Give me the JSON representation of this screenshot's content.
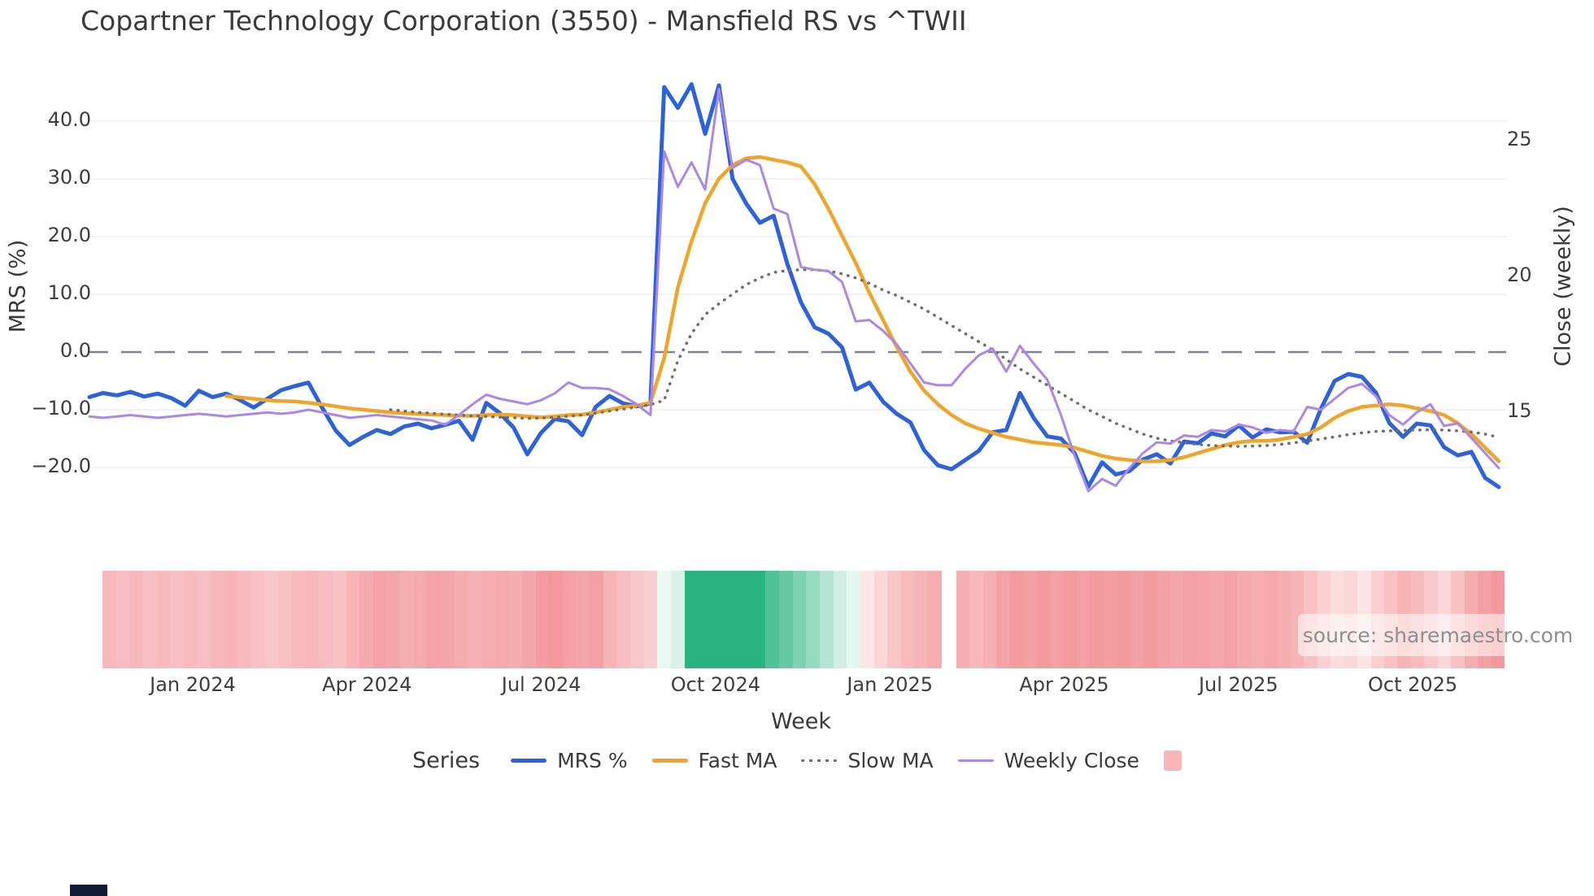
{
  "title": "Copartner Technology Corporation (3550) - Mansfield RS vs ^TWII",
  "source": "source: sharemaestro.com",
  "left_axis": {
    "label": "MRS (%)",
    "tick_labels": [
      "40.0",
      "30.0",
      "20.0",
      "10.0",
      "0.0",
      "−10.0",
      "−20.0"
    ],
    "tick_values": [
      40,
      30,
      20,
      10,
      0,
      -10,
      -20
    ]
  },
  "right_axis": {
    "label": "Close (weekly)",
    "tick_labels": [
      "25",
      "20",
      "15"
    ],
    "tick_values": [
      25,
      20,
      15
    ]
  },
  "x_axis": {
    "label": "Week",
    "tick_labels": [
      "Jan 2024",
      "Apr 2024",
      "Jul 2024",
      "Oct 2024",
      "Jan 2025",
      "Apr 2025",
      "Jul 2025",
      "Oct 2025"
    ]
  },
  "legend": {
    "title": "Series",
    "items": [
      {
        "label": "MRS %",
        "swatch": "line",
        "color": "#2e62d9",
        "thickness": 5
      },
      {
        "label": "Fast MA",
        "swatch": "line",
        "color": "#efa42b",
        "thickness": 4.5
      },
      {
        "label": "Slow MA",
        "swatch": "dotted",
        "color": "#6e6e6e",
        "thickness": 3.5
      },
      {
        "label": "Weekly Close",
        "swatch": "line",
        "color": "#ab87e6",
        "thickness": 3
      },
      {
        "label": "",
        "swatch": "square",
        "color": "#f7b5b8",
        "thickness": 0
      }
    ]
  },
  "colors": {
    "mrs": "#2e62d9",
    "fast_ma": "#efa42b",
    "slow_ma": "#6e6e6e",
    "weekly_close": "#ab87e6",
    "grid": "#ebedf2",
    "zero_line": "#82828c",
    "heat_red_full": "#ef767c",
    "heat_green_full": "#2ab381"
  },
  "chart_data": {
    "type": "line",
    "x_unit": "week",
    "x_weeks": 104,
    "x_tick_labels": [
      "Jan 2024",
      "Apr 2024",
      "Jul 2024",
      "Oct 2024",
      "Jan 2025",
      "Apr 2025",
      "Jul 2025",
      "Oct 2025"
    ],
    "left_axis": {
      "label": "MRS (%)",
      "ticks": [
        40,
        30,
        20,
        10,
        0,
        -10,
        -20
      ],
      "range": [
        -27,
        49
      ]
    },
    "right_axis": {
      "label": "Close (weekly)",
      "ticks": [
        25,
        20,
        15
      ],
      "range": [
        11.1,
        28.9
      ]
    },
    "zero_dashed_line_left_value": 0,
    "grid": "horizontal-only",
    "legend_position": "bottom",
    "series": [
      {
        "name": "MRS %",
        "axis": "left",
        "color": "#2e62d9",
        "style": "solid",
        "width": 5,
        "values": [
          -7.8,
          -7.1,
          -7.5,
          -6.9,
          -7.7,
          -7.2,
          -8.0,
          -9.3,
          -6.7,
          -7.8,
          -7.2,
          -8.3,
          -9.6,
          -8.1,
          -6.6,
          -5.9,
          -5.3,
          -9.6,
          -13.6,
          -16.1,
          -14.7,
          -13.5,
          -14.2,
          -12.9,
          -12.4,
          -13.2,
          -12.6,
          -11.9,
          -15.2,
          -8.8,
          -10.6,
          -13.1,
          -17.7,
          -14.0,
          -11.6,
          -12.0,
          -14.4,
          -9.5,
          -7.6,
          -8.9,
          -9.4,
          -8.9,
          45.9,
          42.3,
          46.4,
          37.8,
          46.2,
          30.0,
          25.7,
          22.4,
          23.6,
          15.3,
          8.6,
          4.3,
          3.2,
          0.8,
          -6.5,
          -5.3,
          -8.6,
          -10.7,
          -12.2,
          -17.0,
          -19.6,
          -20.3,
          -18.7,
          -17.1,
          -13.9,
          -13.5,
          -7.1,
          -11.4,
          -14.6,
          -15.0,
          -17.5,
          -23.3,
          -19.1,
          -21.2,
          -20.6,
          -18.6,
          -17.7,
          -19.3,
          -15.5,
          -15.8,
          -14.1,
          -14.6,
          -12.7,
          -14.8,
          -13.4,
          -13.9,
          -13.8,
          -15.7,
          -9.8,
          -5.0,
          -3.8,
          -4.3,
          -7.0,
          -12.3,
          -14.7,
          -12.4,
          -12.7,
          -16.5,
          -17.9,
          -17.3,
          -21.8,
          -23.4
        ]
      },
      {
        "name": "Fast MA",
        "axis": "right",
        "color": "#efa42b",
        "style": "solid",
        "width": 4.5,
        "values": [
          null,
          null,
          null,
          null,
          null,
          null,
          null,
          null,
          null,
          null,
          15.6,
          15.55,
          15.5,
          15.45,
          15.42,
          15.4,
          15.35,
          15.3,
          15.22,
          15.15,
          15.1,
          15.05,
          15.0,
          14.97,
          14.95,
          14.92,
          14.9,
          14.88,
          14.87,
          14.9,
          14.92,
          14.9,
          14.85,
          14.82,
          14.85,
          14.9,
          14.92,
          15.0,
          15.1,
          15.2,
          15.25,
          15.35,
          17.0,
          19.6,
          21.3,
          22.7,
          23.6,
          24.1,
          24.35,
          24.4,
          24.3,
          24.2,
          24.05,
          23.4,
          22.5,
          21.5,
          20.5,
          19.4,
          18.4,
          17.4,
          16.5,
          15.8,
          15.3,
          14.9,
          14.6,
          14.4,
          14.25,
          14.1,
          14.0,
          13.9,
          13.85,
          13.8,
          13.7,
          13.55,
          13.4,
          13.3,
          13.25,
          13.2,
          13.2,
          13.25,
          13.35,
          13.5,
          13.65,
          13.8,
          13.9,
          13.95,
          13.95,
          14.0,
          14.1,
          14.2,
          14.45,
          14.8,
          15.05,
          15.2,
          15.25,
          15.3,
          15.25,
          15.15,
          15.05,
          14.9,
          14.6,
          14.2,
          13.7,
          13.2
        ]
      },
      {
        "name": "Slow MA",
        "axis": "right",
        "color": "#6e6e6e",
        "style": "dotted",
        "width": 3.5,
        "values": [
          null,
          null,
          null,
          null,
          null,
          null,
          null,
          null,
          null,
          null,
          null,
          null,
          null,
          null,
          null,
          null,
          null,
          null,
          null,
          null,
          null,
          null,
          15.1,
          15.05,
          15.0,
          14.97,
          14.93,
          14.9,
          14.87,
          14.85,
          14.82,
          14.8,
          14.78,
          14.79,
          14.82,
          14.86,
          14.9,
          14.97,
          15.05,
          15.12,
          15.2,
          15.28,
          15.45,
          16.9,
          17.9,
          18.6,
          19.0,
          19.35,
          19.7,
          19.95,
          20.15,
          20.22,
          20.25,
          20.25,
          20.2,
          20.1,
          19.95,
          19.75,
          19.5,
          19.3,
          19.05,
          18.8,
          18.5,
          18.2,
          17.9,
          17.6,
          17.3,
          16.95,
          16.6,
          16.3,
          16.0,
          15.7,
          15.4,
          15.1,
          14.85,
          14.6,
          14.4,
          14.2,
          14.05,
          13.95,
          13.88,
          13.82,
          13.78,
          13.76,
          13.75,
          13.76,
          13.78,
          13.82,
          13.88,
          13.95,
          14.02,
          14.1,
          14.18,
          14.25,
          14.3,
          14.32,
          14.34,
          14.35,
          14.36,
          14.35,
          14.32,
          14.28,
          14.2,
          14.08
        ]
      },
      {
        "name": "Weekly Close",
        "axis": "right",
        "color": "#ab87e6",
        "style": "solid",
        "width": 3,
        "values": [
          14.85,
          14.8,
          14.85,
          14.9,
          14.85,
          14.8,
          14.85,
          14.9,
          14.95,
          14.9,
          14.85,
          14.9,
          14.95,
          15.0,
          14.95,
          15.0,
          15.1,
          15.0,
          14.9,
          14.8,
          14.85,
          14.9,
          14.85,
          14.8,
          14.75,
          14.7,
          14.55,
          14.9,
          15.3,
          15.65,
          15.5,
          15.4,
          15.3,
          15.45,
          15.7,
          16.1,
          15.9,
          15.9,
          15.85,
          15.6,
          15.3,
          14.9,
          24.6,
          23.3,
          24.2,
          23.2,
          26.9,
          24.0,
          24.3,
          24.1,
          22.5,
          22.3,
          20.35,
          20.25,
          20.2,
          19.8,
          18.35,
          18.4,
          18.0,
          17.5,
          16.8,
          16.1,
          16.0,
          16.0,
          16.6,
          17.1,
          17.35,
          16.5,
          17.45,
          16.8,
          16.2,
          14.9,
          13.4,
          12.1,
          12.55,
          12.3,
          12.95,
          13.5,
          13.9,
          13.85,
          14.15,
          14.1,
          14.35,
          14.3,
          14.55,
          14.45,
          14.25,
          14.35,
          14.3,
          15.2,
          15.1,
          15.5,
          15.9,
          16.05,
          15.6,
          14.9,
          14.55,
          15.0,
          15.3,
          14.5,
          14.6,
          14.05,
          13.5,
          12.95
        ]
      }
    ],
    "heatmap": {
      "description": "weekly relative-strength heat strip, red=negative green=positive, intensity -1..1",
      "segments": [
        {
          "cells": [
            -0.52,
            -0.48,
            -0.52,
            -0.47,
            -0.5,
            -0.46,
            -0.5,
            -0.47,
            -0.52,
            -0.55,
            -0.5,
            -0.45,
            -0.42,
            -0.45,
            -0.5,
            -0.52,
            -0.48,
            -0.44,
            -0.55,
            -0.62,
            -0.68,
            -0.65,
            -0.6,
            -0.63,
            -0.68,
            -0.65,
            -0.6,
            -0.57,
            -0.6,
            -0.63,
            -0.6,
            -0.65,
            -0.72,
            -0.75,
            -0.7,
            -0.66,
            -0.7,
            -0.55,
            -0.48,
            -0.42,
            -0.36,
            0.1,
            0.18,
            1.0,
            1.0,
            1.0,
            1.0,
            1.0,
            1.0,
            0.82,
            0.72,
            0.6,
            0.5,
            0.35,
            0.22,
            0.12,
            -0.18,
            -0.3,
            -0.42,
            -0.5,
            -0.55,
            -0.6
          ]
        },
        {
          "cells": [
            -0.58,
            -0.52,
            -0.58,
            -0.68,
            -0.73,
            -0.7,
            -0.74,
            -0.7,
            -0.74,
            -0.7,
            -0.74,
            -0.71,
            -0.74,
            -0.7,
            -0.73,
            -0.7,
            -0.66,
            -0.7,
            -0.68,
            -0.64,
            -0.68,
            -0.63,
            -0.6,
            -0.64,
            -0.6,
            -0.55,
            -0.45,
            -0.34,
            -0.25,
            -0.3,
            -0.2,
            -0.35,
            -0.45,
            -0.55,
            -0.5,
            -0.4,
            -0.3,
            -0.45,
            -0.6,
            -0.7,
            -0.75
          ]
        }
      ]
    }
  }
}
